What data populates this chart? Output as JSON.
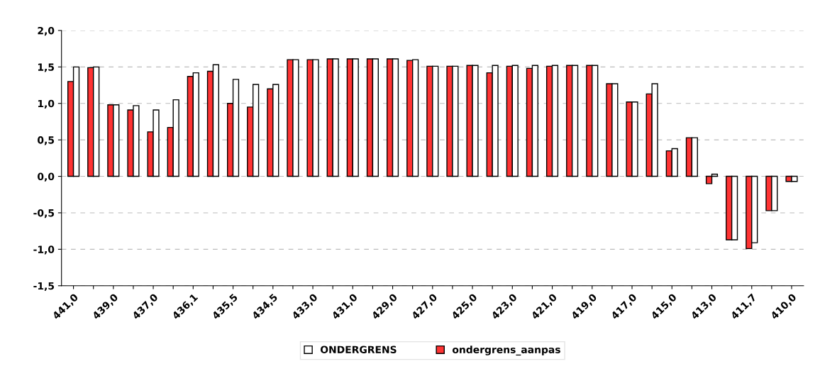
{
  "chart_data": {
    "type": "bar",
    "categories": [
      "441,0",
      null,
      "439,0",
      null,
      "437,0",
      null,
      "436,1",
      null,
      "435,5",
      null,
      "434,5",
      null,
      "433,0",
      null,
      "431,0",
      null,
      "429,0",
      null,
      "427,0",
      null,
      "425,0",
      null,
      "423,0",
      null,
      "421,0",
      null,
      "419,0",
      null,
      "417,0",
      null,
      "415,0",
      null,
      "413,0",
      null,
      "411,7",
      null,
      "410,0"
    ],
    "series": [
      {
        "name": "ondergrens_aanpas",
        "color": "#ff3333",
        "values": [
          1.3,
          1.49,
          0.98,
          0.91,
          0.61,
          0.67,
          1.37,
          1.44,
          1.0,
          0.95,
          1.2,
          1.6,
          1.6,
          1.61,
          1.61,
          1.61,
          1.61,
          1.59,
          1.51,
          1.51,
          1.52,
          1.42,
          1.51,
          1.48,
          1.51,
          1.52,
          1.52,
          1.27,
          1.02,
          1.13,
          0.35,
          0.53,
          -0.1,
          -0.87,
          -0.99,
          -0.47,
          -0.07
        ]
      },
      {
        "name": "ONDERGRENS",
        "color": "#ffffff",
        "values": [
          1.5,
          1.5,
          0.98,
          0.97,
          0.91,
          1.05,
          1.42,
          1.53,
          1.33,
          1.26,
          1.26,
          1.6,
          1.6,
          1.61,
          1.61,
          1.61,
          1.61,
          1.6,
          1.51,
          1.51,
          1.52,
          1.52,
          1.52,
          1.52,
          1.52,
          1.52,
          1.52,
          1.27,
          1.02,
          1.27,
          0.38,
          0.53,
          0.03,
          -0.87,
          -0.91,
          -0.47,
          -0.07
        ]
      }
    ],
    "ylim": [
      -1.5,
      2.0
    ],
    "yticks": [
      {
        "value": -1.5,
        "label": "-1,5"
      },
      {
        "value": -1.0,
        "label": "-1,0"
      },
      {
        "value": -0.5,
        "label": "-0,5"
      },
      {
        "value": 0.0,
        "label": "0,0"
      },
      {
        "value": 0.5,
        "label": "0,5"
      },
      {
        "value": 1.0,
        "label": "1,0"
      },
      {
        "value": 1.5,
        "label": "1,5"
      },
      {
        "value": 2.0,
        "label": "2,0"
      }
    ],
    "grid": "y",
    "legend": "bottom"
  }
}
